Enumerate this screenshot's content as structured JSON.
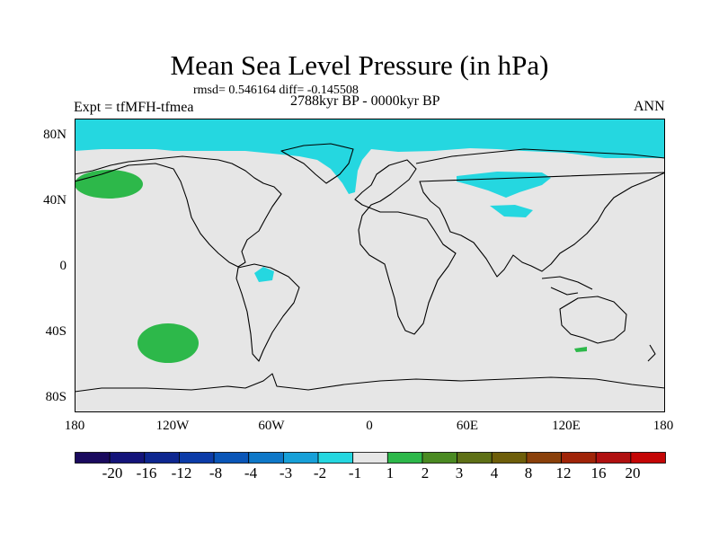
{
  "title": "Mean Sea Level Pressure (in hPa)",
  "stats": "rmsd= 0.546164 diff= -0.145508",
  "experiment": "Expt = tfMFH-tfmea",
  "period": "2788kyr BP - 0000kyr BP",
  "season": "ANN",
  "y_ticks": [
    "80N",
    "40N",
    "0",
    "40S",
    "80S"
  ],
  "x_ticks": [
    "180",
    "120W",
    "60W",
    "0",
    "60E",
    "120E",
    "180"
  ],
  "colorbar": {
    "labels": [
      "-20",
      "-16",
      "-12",
      "-8",
      "-4",
      "-3",
      "-2",
      "-1",
      "1",
      "2",
      "3",
      "4",
      "8",
      "12",
      "16",
      "20"
    ],
    "colors": [
      "#1a0a5e",
      "#14147a",
      "#0e2790",
      "#0c3ca8",
      "#0a56b8",
      "#0f78c8",
      "#17a0d8",
      "#25d7e0",
      "#e6e6e6",
      "#2db84a",
      "#4a8a22",
      "#5e7016",
      "#6e5e0a",
      "#8a400a",
      "#a02408",
      "#b01010",
      "#c40606"
    ]
  },
  "colors": {
    "background": "#e6e6e6",
    "negative_anomaly": "#25d7e0",
    "positive_anomaly": "#2db84a",
    "coastline": "#000000"
  }
}
